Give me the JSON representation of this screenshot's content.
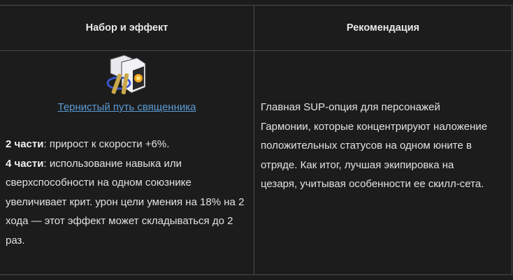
{
  "table": {
    "headers": [
      "Набор и эффект",
      "Рекомендация"
    ],
    "set": {
      "icon": "thorny-path-relic-icon",
      "name": "Тернистый путь священника",
      "effects": [
        {
          "label": "2 части",
          "text": ": прирост к скорости +6%."
        },
        {
          "label": "4 части",
          "text": ": использование навыка или сверхспособности на одном союзнике увеличивает крит. урон цели умения на 18% на 2 хода — этот эффект может складываться до 2 раз."
        }
      ]
    },
    "recommendation": "Главная SUP-опция для персонажей Гармонии, которые концентрируют наложение положительных статусов на одном юните в отряде. Как итог, лучшая экипировка на цезаря, учитывая особенности ее скилл-сета."
  },
  "colors": {
    "background": "#1c1c1c",
    "border": "#4a4a4a",
    "link": "#5b9bd5",
    "text": "#e2e2e2"
  }
}
